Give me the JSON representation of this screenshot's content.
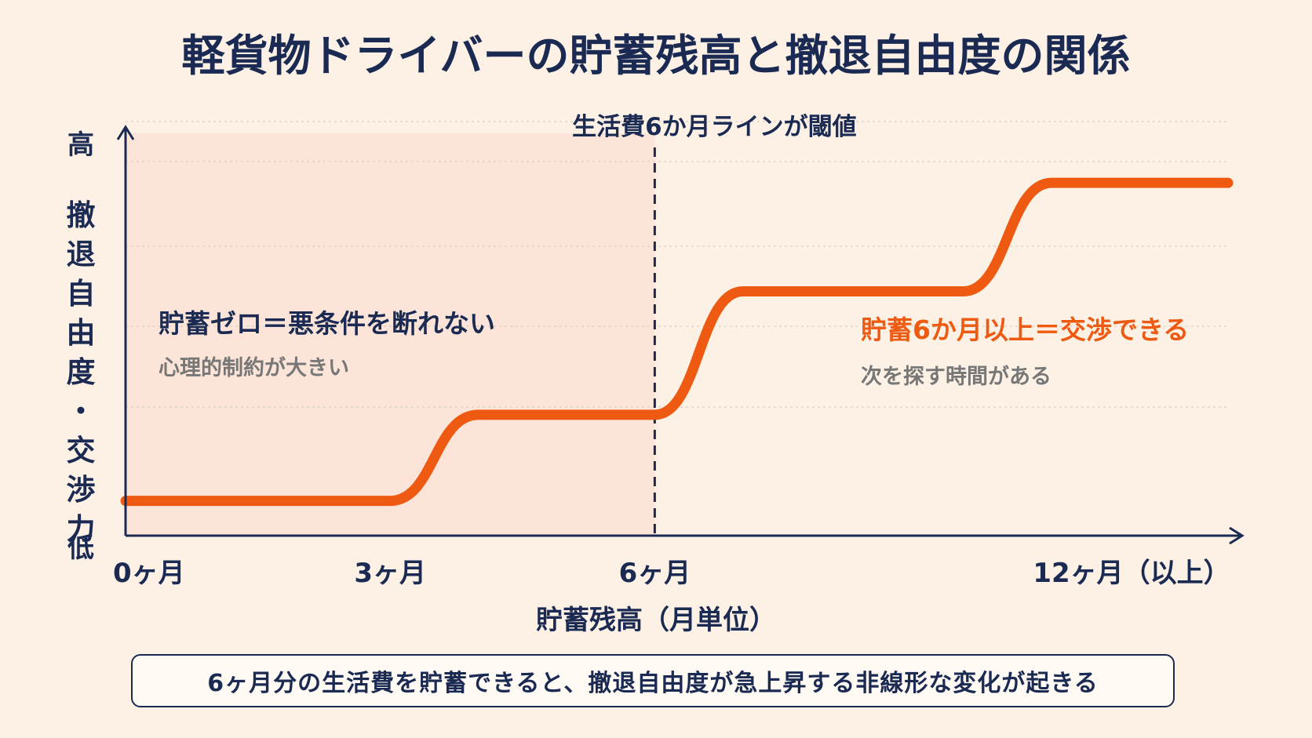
{
  "title": "軽貨物ドライバーの貯蓄残高と撤退自由度の関係",
  "footer_note": "6ヶ月分の生活費を貯蓄できると、撤退自由度が急上昇する非線形な変化が起きる",
  "colors": {
    "background": "#fcf1e4",
    "navy": "#1b2a52",
    "orange": "#ee5a12",
    "shade": "#fbe3d6",
    "gray": "#777777"
  },
  "chart_data": {
    "type": "line",
    "title": "軽貨物ドライバーの貯蓄残高と撤退自由度の関係",
    "xlabel": "貯蓄残高（月単位）",
    "ylabel": "撤退自由度・交渉力",
    "y_high_label": "高",
    "y_low_label": "低",
    "x_ticks": [
      {
        "value": 0,
        "label": "0ヶ月"
      },
      {
        "value": 3,
        "label": "3ヶ月"
      },
      {
        "value": 6,
        "label": "6ヶ月"
      },
      {
        "value": 12,
        "label": "12ヶ月（以上）"
      }
    ],
    "xlim": [
      0,
      12.5
    ],
    "ylim": [
      0,
      100
    ],
    "grid": true,
    "series": [
      {
        "color": "#ee5a12",
        "x": [
          0,
          3,
          4,
          6,
          7,
          9.5,
          10.5,
          12.5
        ],
        "y": [
          7,
          7,
          30,
          30,
          63,
          63,
          92,
          92
        ]
      }
    ],
    "threshold": {
      "x": 6,
      "label": "生活費6か月ラインが閾値"
    },
    "regions": [
      {
        "x_start": 0,
        "x_end": 6,
        "headline": "貯蓄ゼロ＝悪条件を断れない",
        "subtext": "心理的制約が大きい"
      },
      {
        "x_start": 6,
        "x_end": 12.5,
        "headline": "貯蓄6か月以上＝交渉できる",
        "subtext": "次を探す時間がある"
      }
    ]
  }
}
